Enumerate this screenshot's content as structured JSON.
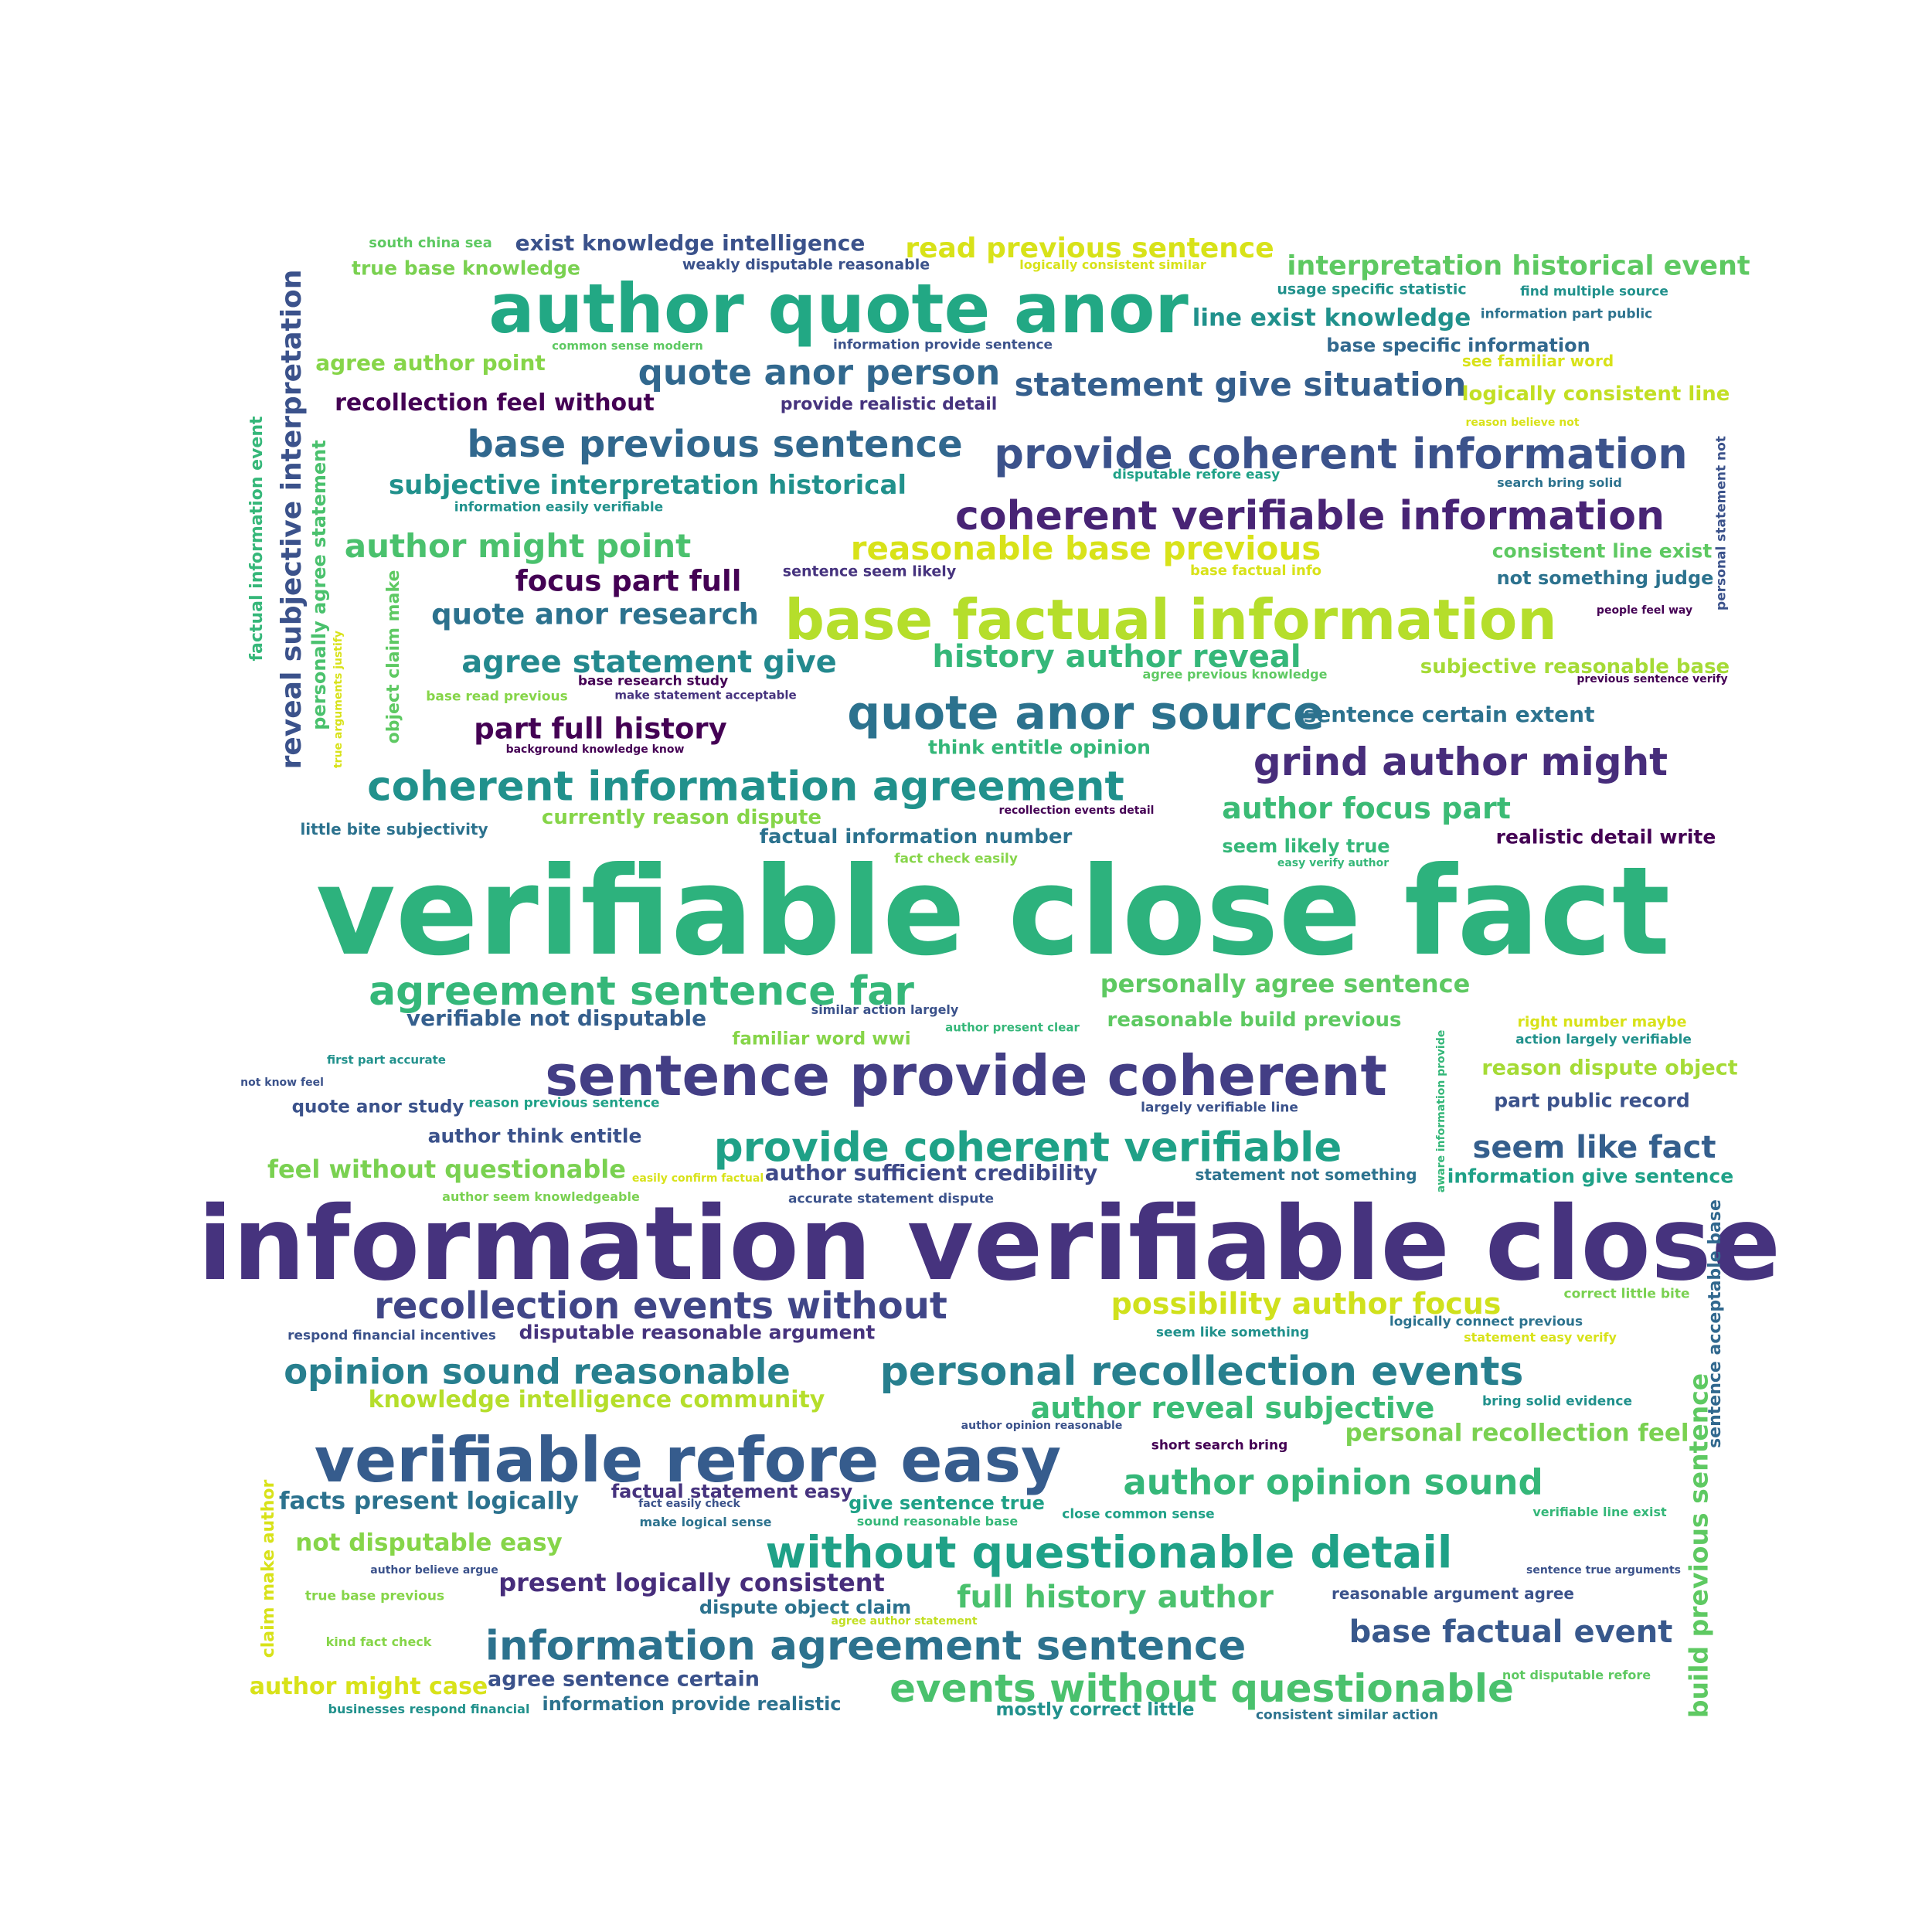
{
  "cloud": {
    "words": [
      {
        "text": "verifiable close fact",
        "color": "#2db27d"
      },
      {
        "text": "information verifiable close",
        "color": "#46337e"
      },
      {
        "text": "author quote anor",
        "color": "#22a884"
      },
      {
        "text": "base factual information",
        "color": "#b5de2b"
      },
      {
        "text": "sentence provide coherent",
        "color": "#433e85"
      },
      {
        "text": "verifiable refore easy",
        "color": "#365c8d"
      },
      {
        "text": "quote anor source",
        "color": "#2c728e"
      },
      {
        "text": "coherent information agreement",
        "color": "#21918c"
      },
      {
        "text": "provide coherent information",
        "color": "#3b528b"
      },
      {
        "text": "coherent verifiable information",
        "color": "#482475"
      },
      {
        "text": "without questionable detail",
        "color": "#1fa187"
      },
      {
        "text": "provide coherent verifiable",
        "color": "#1fa187"
      },
      {
        "text": "information agreement sentence",
        "color": "#2c728e"
      },
      {
        "text": "personal recollection events",
        "color": "#277f8e"
      },
      {
        "text": "events without questionable",
        "color": "#4ac16d"
      },
      {
        "text": "agreement sentence far",
        "color": "#35b779"
      },
      {
        "text": "recollection events without",
        "color": "#404688"
      },
      {
        "text": "grind author might",
        "color": "#472d7b"
      },
      {
        "text": "base previous sentence",
        "color": "#31688e"
      },
      {
        "text": "quote anor person",
        "color": "#31688e"
      },
      {
        "text": "opinion sound reasonable",
        "color": "#277f8e"
      },
      {
        "text": "author opinion sound",
        "color": "#35b779"
      },
      {
        "text": "reasonable base previous",
        "color": "#d8e219"
      },
      {
        "text": "statement give situation",
        "color": "#355f8d"
      },
      {
        "text": "author might point",
        "color": "#4ac16d"
      },
      {
        "text": "agree statement give",
        "color": "#23898e"
      },
      {
        "text": "history author reveal",
        "color": "#35b779"
      },
      {
        "text": "possibility author focus",
        "color": "#d0e11c"
      },
      {
        "text": "author reveal subjective",
        "color": "#3bbb75"
      },
      {
        "text": "quote anor research",
        "color": "#2c728e"
      },
      {
        "text": "base factual event",
        "color": "#38588c"
      },
      {
        "text": "seem like fact",
        "color": "#355f8d"
      },
      {
        "text": "full history author",
        "color": "#4ac16d"
      },
      {
        "text": "part full history",
        "color": "#440154"
      },
      {
        "text": "focus part full",
        "color": "#440154"
      },
      {
        "text": "read previous sentence",
        "color": "#d8e219"
      },
      {
        "text": "subjective interpretation historical",
        "color": "#21918c"
      },
      {
        "text": "author focus part",
        "color": "#3bbb75"
      },
      {
        "text": "interpretation historical event",
        "color": "#5ec962"
      },
      {
        "text": "line exist knowledge",
        "color": "#21918c"
      },
      {
        "text": "reveal subjective interpretation",
        "color": "#3b528b"
      },
      {
        "text": "present logically consistent",
        "color": "#472d7b"
      },
      {
        "text": "feel without questionable",
        "color": "#7ad151"
      },
      {
        "text": "knowledge intelligence community",
        "color": "#b5de2b"
      },
      {
        "text": "personally agree sentence",
        "color": "#5ec962"
      },
      {
        "text": "recollection feel without",
        "color": "#440154"
      },
      {
        "text": "facts present logically",
        "color": "#2c728e"
      },
      {
        "text": "personal recollection feel",
        "color": "#7ad151"
      },
      {
        "text": "not disputable easy",
        "color": "#86d549"
      },
      {
        "text": "build previous sentence",
        "color": "#5ec962"
      },
      {
        "text": "author might case",
        "color": "#d8e219"
      },
      {
        "text": "agree sentence certain",
        "color": "#3b528b"
      },
      {
        "text": "exist knowledge intelligence",
        "color": "#3b528b"
      },
      {
        "text": "agree author point",
        "color": "#86d549"
      },
      {
        "text": "currently reason dispute",
        "color": "#86d549"
      },
      {
        "text": "disputable reasonable argument",
        "color": "#46337e"
      },
      {
        "text": "author sufficient credibility",
        "color": "#3e4989"
      },
      {
        "text": "factual information number",
        "color": "#2c728e"
      },
      {
        "text": "verifiable not disputable",
        "color": "#355f8d"
      },
      {
        "text": "true base knowledge",
        "color": "#7ad151"
      },
      {
        "text": "subjective reasonable base",
        "color": "#a5db36"
      },
      {
        "text": "sentence certain extent",
        "color": "#2c728e"
      },
      {
        "text": "reason dispute object",
        "color": "#a5db36"
      },
      {
        "text": "personally agree statement",
        "color": "#4ac16d"
      },
      {
        "text": "factual information event",
        "color": "#35b779"
      },
      {
        "text": "consistent line exist",
        "color": "#5ec962"
      },
      {
        "text": "reasonable build previous",
        "color": "#5ec962"
      },
      {
        "text": "author think entitle",
        "color": "#3b528b"
      },
      {
        "text": "logically consistent line",
        "color": "#c2df23"
      },
      {
        "text": "quote anor study",
        "color": "#3b528b"
      },
      {
        "text": "not something judge",
        "color": "#2c728e"
      },
      {
        "text": "information give sentence",
        "color": "#1fa187"
      },
      {
        "text": "think entitle opinion",
        "color": "#35b779"
      },
      {
        "text": "part public record",
        "color": "#3b528b"
      },
      {
        "text": "provide realistic detail",
        "color": "#46337e"
      },
      {
        "text": "base specific information",
        "color": "#31688e"
      },
      {
        "text": "familiar word wwi",
        "color": "#86d549"
      },
      {
        "text": "realistic detail write",
        "color": "#440154"
      },
      {
        "text": "seem likely true",
        "color": "#35b779"
      },
      {
        "text": "information provide realistic",
        "color": "#2c728e"
      },
      {
        "text": "dispute object claim",
        "color": "#2c728e"
      },
      {
        "text": "give sentence true",
        "color": "#1fa187"
      },
      {
        "text": "factual statement easy",
        "color": "#46337e"
      },
      {
        "text": "object claim make",
        "color": "#5ec962"
      },
      {
        "text": "claim make author",
        "color": "#d8e219"
      },
      {
        "text": "mostly correct little",
        "color": "#21918c"
      },
      {
        "text": "little bite subjectivity",
        "color": "#2c728e"
      },
      {
        "text": "usage specific statistic",
        "color": "#21918c"
      },
      {
        "text": "see familiar word",
        "color": "#d8e219"
      },
      {
        "text": "sentence acceptable base",
        "color": "#31688e"
      },
      {
        "text": "reasonable argument agree",
        "color": "#3b528b"
      },
      {
        "text": "statement not something",
        "color": "#2c728e"
      },
      {
        "text": "south china sea",
        "color": "#5ec962"
      },
      {
        "text": "weakly disputable reasonable",
        "color": "#3b528b"
      },
      {
        "text": "logically consistent similar",
        "color": "#d8e219"
      },
      {
        "text": "find multiple source",
        "color": "#21918c"
      },
      {
        "text": "information part public",
        "color": "#2c728e"
      },
      {
        "text": "common sense modern",
        "color": "#5ec962"
      },
      {
        "text": "information provide sentence",
        "color": "#3b528b"
      },
      {
        "text": "reason believe not",
        "color": "#d8e219"
      },
      {
        "text": "personal statement not",
        "color": "#3b528b"
      },
      {
        "text": "disputable refore easy",
        "color": "#1fa187"
      },
      {
        "text": "information easily verifiable",
        "color": "#21918c"
      },
      {
        "text": "search bring solid",
        "color": "#2c728e"
      },
      {
        "text": "sentence seem likely",
        "color": "#46337e"
      },
      {
        "text": "base factual info",
        "color": "#d8e219"
      },
      {
        "text": "people feel way",
        "color": "#440154"
      },
      {
        "text": "base research study",
        "color": "#440154"
      },
      {
        "text": "agree previous knowledge",
        "color": "#5ec962"
      },
      {
        "text": "previous sentence verify",
        "color": "#440154"
      },
      {
        "text": "base read previous",
        "color": "#86d549"
      },
      {
        "text": "make statement acceptable",
        "color": "#46337e"
      },
      {
        "text": "true arguments justify",
        "color": "#d8e219"
      },
      {
        "text": "background knowledge know",
        "color": "#440154"
      },
      {
        "text": "recollection events detail",
        "color": "#440154"
      },
      {
        "text": "fact check easily",
        "color": "#86d549"
      },
      {
        "text": "easy verify author",
        "color": "#35b779"
      },
      {
        "text": "similar action largely",
        "color": "#3b528b"
      },
      {
        "text": "author present clear",
        "color": "#35b779"
      },
      {
        "text": "right number maybe",
        "color": "#d8e219"
      },
      {
        "text": "action largely verifiable",
        "color": "#21918c"
      },
      {
        "text": "first part accurate",
        "color": "#21918c"
      },
      {
        "text": "not know feel",
        "color": "#3b528b"
      },
      {
        "text": "aware information provide",
        "color": "#35b779"
      },
      {
        "text": "reason previous sentence",
        "color": "#1fa187"
      },
      {
        "text": "largely verifiable line",
        "color": "#3b528b"
      },
      {
        "text": "easily confirm factual",
        "color": "#d8e219"
      },
      {
        "text": "author seem knowledgeable",
        "color": "#7ad151"
      },
      {
        "text": "accurate statement dispute",
        "color": "#3b528b"
      },
      {
        "text": "correct little bite",
        "color": "#7ad151"
      },
      {
        "text": "respond financial incentives",
        "color": "#3b528b"
      },
      {
        "text": "seem like something",
        "color": "#21918c"
      },
      {
        "text": "logically connect previous",
        "color": "#2c728e"
      },
      {
        "text": "statement easy verify",
        "color": "#d8e219"
      },
      {
        "text": "bring solid evidence",
        "color": "#21918c"
      },
      {
        "text": "author opinion reasonable",
        "color": "#3b528b"
      },
      {
        "text": "short search bring",
        "color": "#440154"
      },
      {
        "text": "fact easily check",
        "color": "#3b528b"
      },
      {
        "text": "make logical sense",
        "color": "#2c728e"
      },
      {
        "text": "sound reasonable base",
        "color": "#35b779"
      },
      {
        "text": "close common sense",
        "color": "#1fa187"
      },
      {
        "text": "verifiable line exist",
        "color": "#35b779"
      },
      {
        "text": "author believe argue",
        "color": "#3b528b"
      },
      {
        "text": "sentence true arguments",
        "color": "#3b528b"
      },
      {
        "text": "true base previous",
        "color": "#86d549"
      },
      {
        "text": "agree author statement",
        "color": "#c2df23"
      },
      {
        "text": "kind fact check",
        "color": "#86d549"
      },
      {
        "text": "not disputable refore",
        "color": "#5ec962"
      },
      {
        "text": "businesses respond financial",
        "color": "#21918c"
      },
      {
        "text": "consistent similar action",
        "color": "#2c728e"
      }
    ]
  }
}
